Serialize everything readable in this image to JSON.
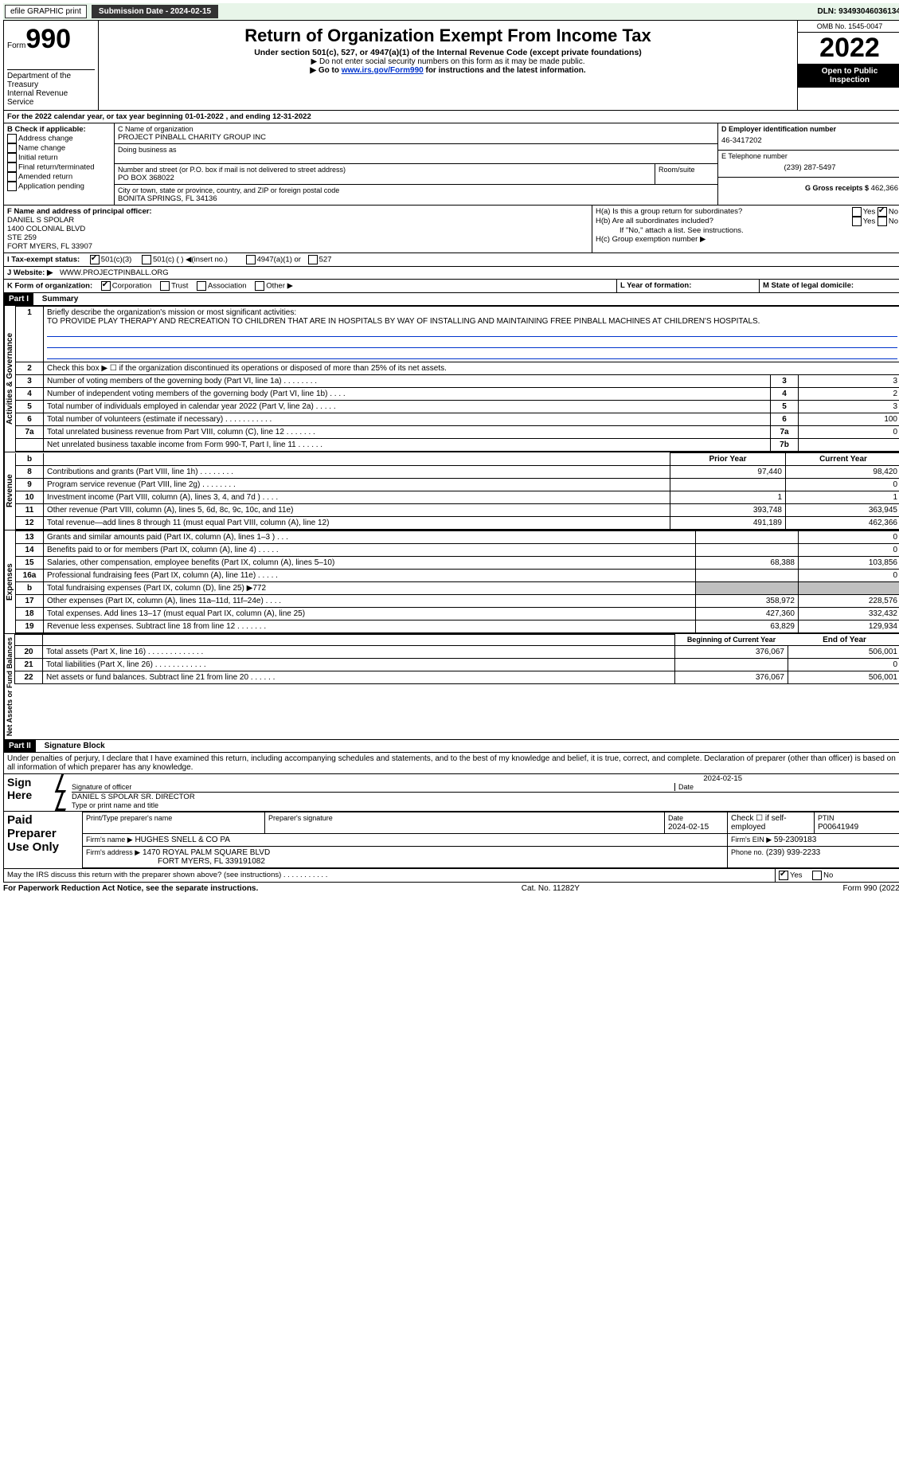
{
  "topbar": {
    "efile": "efile GRAPHIC print",
    "submission_label": "Submission Date - 2024-02-15",
    "dln": "DLN: 93493046036134"
  },
  "header": {
    "form_word": "Form",
    "form_number": "990",
    "title": "Return of Organization Exempt From Income Tax",
    "subtitle": "Under section 501(c), 527, or 4947(a)(1) of the Internal Revenue Code (except private foundations)",
    "note1": "▶ Do not enter social security numbers on this form as it may be made public.",
    "note2_prefix": "▶ Go to ",
    "note2_link": "www.irs.gov/Form990",
    "note2_suffix": " for instructions and the latest information.",
    "dept": "Department of the Treasury",
    "irs": "Internal Revenue Service",
    "omb": "OMB No. 1545-0047",
    "year": "2022",
    "open": "Open to Public Inspection"
  },
  "line_a": "For the 2022 calendar year, or tax year beginning 01-01-2022    , and ending 12-31-2022",
  "box_b": {
    "label": "B Check if applicable:",
    "items": [
      "Address change",
      "Name change",
      "Initial return",
      "Final return/terminated",
      "Amended return",
      "Application pending"
    ]
  },
  "box_c": {
    "name_label": "C Name of organization",
    "name": "PROJECT PINBALL CHARITY GROUP INC",
    "dba_label": "Doing business as",
    "street_label": "Number and street (or P.O. box if mail is not delivered to street address)",
    "room_label": "Room/suite",
    "street": "PO BOX 368022",
    "city_label": "City or town, state or province, country, and ZIP or foreign postal code",
    "city": "BONITA SPRINGS, FL  34136"
  },
  "box_d": {
    "label": "D Employer identification number",
    "value": "46-3417202"
  },
  "box_e": {
    "label": "E Telephone number",
    "value": "(239) 287-5497"
  },
  "box_g": {
    "label": "G Gross receipts $",
    "value": "462,366"
  },
  "box_f": {
    "label": "F  Name and address of principal officer:",
    "line1": "DANIEL S SPOLAR",
    "line2": "1400 COLONIAL BLVD",
    "line3": "STE 259",
    "line4": "FORT MYERS, FL  33907"
  },
  "box_h": {
    "ha": "H(a)  Is this a group return for subordinates?",
    "hb": "H(b)  Are all subordinates included?",
    "hb_note": "If \"No,\" attach a list. See instructions.",
    "hc": "H(c)  Group exemption number ▶",
    "yes": "Yes",
    "no": "No"
  },
  "box_i": {
    "label": "I   Tax-exempt status:",
    "opt1": "501(c)(3)",
    "opt2": "501(c) (  ) ◀(insert no.)",
    "opt3": "4947(a)(1) or",
    "opt4": "527"
  },
  "box_j": {
    "label": "J   Website: ▶",
    "value": "WWW.PROJECTPINBALL.ORG"
  },
  "box_k": {
    "label": "K Form of organization:",
    "corp": "Corporation",
    "trust": "Trust",
    "assoc": "Association",
    "other": "Other ▶"
  },
  "box_l": "L Year of formation:",
  "box_m": "M State of legal domicile:",
  "part1": {
    "header": "Part I",
    "title": "Summary",
    "side_a": "Activities & Governance",
    "side_r": "Revenue",
    "side_e": "Expenses",
    "side_n": "Net Assets or Fund Balances",
    "line1_label": "Briefly describe the organization's mission or most significant activities:",
    "line1_text": "TO PROVIDE PLAY THERAPY AND RECREATION TO CHILDREN THAT ARE IN HOSPITALS BY WAY OF INSTALLING AND MAINTAINING FREE PINBALL MACHINES AT CHILDREN'S HOSPITALS.",
    "line2": "Check this box ▶ ☐  if the organization discontinued its operations or disposed of more than 25% of its net assets.",
    "rows_top": [
      {
        "n": "3",
        "label": "Number of voting members of the governing body (Part VI, line 1a)   .    .    .    .    .    .    .    .",
        "box": "3",
        "val": "3"
      },
      {
        "n": "4",
        "label": "Number of independent voting members of the governing body (Part VI, line 1b)   .    .    .    .",
        "box": "4",
        "val": "2"
      },
      {
        "n": "5",
        "label": "Total number of individuals employed in calendar year 2022 (Part V, line 2a)   .    .    .    .    .",
        "box": "5",
        "val": "3"
      },
      {
        "n": "6",
        "label": "Total number of volunteers (estimate if necessary)    .    .    .    .    .    .    .    .    .    .    .",
        "box": "6",
        "val": "100"
      },
      {
        "n": "7a",
        "label": "Total unrelated business revenue from Part VIII, column (C), line 12    .    .    .    .    .    .    .",
        "box": "7a",
        "val": "0"
      },
      {
        "n": "",
        "label": "Net unrelated business taxable income from Form 990-T, Part I, line 11    .    .    .    .    .    .",
        "box": "7b",
        "val": ""
      }
    ],
    "prior": "Prior Year",
    "current": "Current Year",
    "rows_rev": [
      {
        "n": "8",
        "label": "Contributions and grants (Part VIII, line 1h)   .    .    .    .    .    .    .    .",
        "p": "97,440",
        "c": "98,420"
      },
      {
        "n": "9",
        "label": "Program service revenue (Part VIII, line 2g)   .    .    .    .    .    .    .    .",
        "p": "",
        "c": "0"
      },
      {
        "n": "10",
        "label": "Investment income (Part VIII, column (A), lines 3, 4, and 7d )   .    .    .    .",
        "p": "1",
        "c": "1"
      },
      {
        "n": "11",
        "label": "Other revenue (Part VIII, column (A), lines 5, 6d, 8c, 9c, 10c, and 11e)",
        "p": "393,748",
        "c": "363,945"
      },
      {
        "n": "12",
        "label": "Total revenue—add lines 8 through 11 (must equal Part VIII, column (A), line 12)",
        "p": "491,189",
        "c": "462,366"
      }
    ],
    "rows_exp": [
      {
        "n": "13",
        "label": "Grants and similar amounts paid (Part IX, column (A), lines 1–3 )   .    .    .",
        "p": "",
        "c": "0"
      },
      {
        "n": "14",
        "label": "Benefits paid to or for members (Part IX, column (A), line 4)   .    .    .    .    .",
        "p": "",
        "c": "0"
      },
      {
        "n": "15",
        "label": "Salaries, other compensation, employee benefits (Part IX, column (A), lines 5–10)",
        "p": "68,388",
        "c": "103,856"
      },
      {
        "n": "16a",
        "label": "Professional fundraising fees (Part IX, column (A), line 11e)   .    .    .    .    .",
        "p": "",
        "c": "0"
      },
      {
        "n": "b",
        "label": "Total fundraising expenses (Part IX, column (D), line 25) ▶772",
        "p": "GRAY",
        "c": "GRAY"
      },
      {
        "n": "17",
        "label": "Other expenses (Part IX, column (A), lines 11a–11d, 11f–24e)   .    .    .    .",
        "p": "358,972",
        "c": "228,576"
      },
      {
        "n": "18",
        "label": "Total expenses. Add lines 13–17 (must equal Part IX, column (A), line 25)",
        "p": "427,360",
        "c": "332,432"
      },
      {
        "n": "19",
        "label": "Revenue less expenses. Subtract line 18 from line 12   .    .    .    .    .    .    .",
        "p": "63,829",
        "c": "129,934"
      }
    ],
    "begin": "Beginning of Current Year",
    "end": "End of Year",
    "rows_net": [
      {
        "n": "20",
        "label": "Total assets (Part X, line 16)   .    .    .    .    .    .    .    .    .    .    .    .    .",
        "p": "376,067",
        "c": "506,001"
      },
      {
        "n": "21",
        "label": "Total liabilities (Part X, line 26)   .    .    .    .    .    .    .    .    .    .    .    .",
        "p": "",
        "c": "0"
      },
      {
        "n": "22",
        "label": "Net assets or fund balances. Subtract line 21 from line 20   .    .    .    .    .    .",
        "p": "376,067",
        "c": "506,001"
      }
    ]
  },
  "part2": {
    "header": "Part II",
    "title": "Signature Block",
    "perjury": "Under penalties of perjury, I declare that I have examined this return, including accompanying schedules and statements, and to the best of my knowledge and belief, it is true, correct, and complete. Declaration of preparer (other than officer) is based on all information of which preparer has any knowledge.",
    "sign_here": "Sign Here",
    "sig_officer": "Signature of officer",
    "date": "Date",
    "sig_date": "2024-02-15",
    "name_title": "DANIEL S SPOLAR  SR. DIRECTOR",
    "type_name": "Type or print name and title",
    "paid": "Paid Preparer Use Only",
    "prep_name_label": "Print/Type preparer's name",
    "prep_sig_label": "Preparer's signature",
    "prep_date_label": "Date",
    "prep_date": "2024-02-15",
    "check_self": "Check ☐ if self-employed",
    "ptin_label": "PTIN",
    "ptin": "P00641949",
    "firm_name_label": "Firm's name    ▶",
    "firm_name": "HUGHES SNELL & CO PA",
    "firm_ein_label": "Firm's EIN ▶",
    "firm_ein": "59-2309183",
    "firm_addr_label": "Firm's address ▶",
    "firm_addr1": "1470 ROYAL PALM SQUARE BLVD",
    "firm_addr2": "FORT MYERS, FL  339191082",
    "phone_label": "Phone no.",
    "phone": "(239) 939-2233",
    "may_irs": "May the IRS discuss this return with the preparer shown above? (see instructions)   .    .    .    .    .    .    .    .    .    .    .",
    "yes": "Yes",
    "no": "No"
  },
  "footer": {
    "left": "For Paperwork Reduction Act Notice, see the separate instructions.",
    "mid": "Cat. No. 11282Y",
    "right": "Form 990 (2022)"
  }
}
